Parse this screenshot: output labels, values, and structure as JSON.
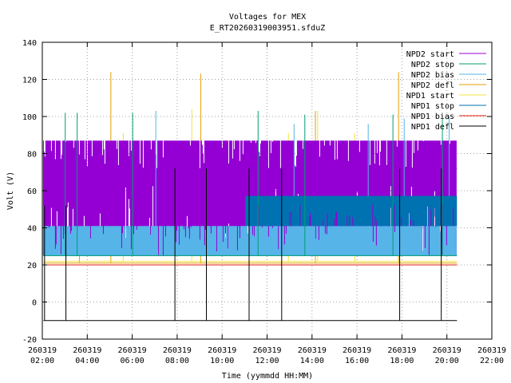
{
  "chart_data": {
    "type": "line",
    "title": "Voltages for MEX",
    "subtitle": "E_RT20260319003951.sfduZ",
    "xlabel": "Time (yymmdd HH:MM)",
    "ylabel": "Volt (V)",
    "ylim": [
      -20,
      140
    ],
    "yticks": [
      -20,
      0,
      20,
      40,
      60,
      80,
      100,
      120,
      140
    ],
    "xlim_hours": [
      2,
      22
    ],
    "xticks": [
      {
        "date": "260319",
        "time": "02:00",
        "hour": 2
      },
      {
        "date": "260319",
        "time": "04:00",
        "hour": 4
      },
      {
        "date": "260319",
        "time": "06:00",
        "hour": 6
      },
      {
        "date": "260319",
        "time": "08:00",
        "hour": 8
      },
      {
        "date": "260319",
        "time": "10:00",
        "hour": 10
      },
      {
        "date": "260319",
        "time": "12:00",
        "hour": 12
      },
      {
        "date": "260319",
        "time": "14:00",
        "hour": 14
      },
      {
        "date": "260319",
        "time": "16:00",
        "hour": 16
      },
      {
        "date": "260319",
        "time": "18:00",
        "hour": 18
      },
      {
        "date": "260319",
        "time": "20:00",
        "hour": 20
      },
      {
        "date": "260319",
        "time": "22:00",
        "hour": 22
      }
    ],
    "grid": true,
    "legend_position": "top-right",
    "series": [
      {
        "name": "NPD2 start",
        "color": "#9400d3",
        "x_range": [
          2.05,
          20.45
        ],
        "base": 72,
        "low": 25,
        "high": 87,
        "spikes": []
      },
      {
        "name": "NPD2 stop",
        "color": "#009e73",
        "x_range": [
          2.05,
          20.45
        ],
        "base": 25,
        "low": 25,
        "high": 25,
        "spikes": [
          [
            2.05,
            52
          ],
          [
            3.02,
            102
          ],
          [
            3.55,
            102
          ],
          [
            6.02,
            102
          ],
          [
            11.6,
            103
          ],
          [
            13.68,
            101
          ],
          [
            17.6,
            101
          ],
          [
            19.8,
            99
          ]
        ]
      },
      {
        "name": "NPD2 bias",
        "color": "#56b4e9",
        "x_range": [
          2.05,
          20.45
        ],
        "base": 25,
        "low": 25,
        "high": 41,
        "spikes": [
          [
            7.05,
            103
          ],
          [
            13.2,
            96
          ],
          [
            16.5,
            96
          ],
          [
            18.1,
            99
          ],
          [
            20.1,
            100
          ]
        ]
      },
      {
        "name": "NPD2 defl",
        "color": "#e69f00",
        "x_range": [
          2.05,
          20.45
        ],
        "base": 21,
        "low": 21,
        "high": 21,
        "spikes": [
          [
            3.65,
            76
          ],
          [
            5.05,
            124
          ],
          [
            9.05,
            123
          ],
          [
            14.15,
            103
          ],
          [
            17.85,
            124
          ]
        ]
      },
      {
        "name": "NPD1 start",
        "color": "#f0e442",
        "x_range": [
          2.05,
          20.45
        ],
        "base": 22,
        "low": 22,
        "high": 22,
        "spikes": [
          [
            5.6,
            91
          ],
          [
            8.65,
            104
          ],
          [
            12.95,
            91
          ],
          [
            14.25,
            103
          ],
          [
            15.9,
            91
          ]
        ]
      },
      {
        "name": "NPD1 stop",
        "color": "#0072b2",
        "x_range": [
          11.05,
          20.45
        ],
        "base": 57,
        "low": 41,
        "high": 57,
        "spikes": []
      },
      {
        "name": "NPD1 bias",
        "color": "#e51e10",
        "x_range": [
          2.05,
          20.45
        ],
        "base": 20,
        "low": 20,
        "high": 20,
        "spikes": []
      },
      {
        "name": "NPD1 defl",
        "color": "#000000",
        "x_range": [
          2.05,
          20.45
        ],
        "base": -10,
        "low": -10,
        "high": -10,
        "spikes": [
          [
            2.1,
            52
          ],
          [
            3.05,
            52
          ],
          [
            7.9,
            72
          ],
          [
            9.3,
            72
          ],
          [
            11.2,
            72
          ],
          [
            12.65,
            72
          ],
          [
            17.9,
            72
          ],
          [
            19.75,
            72
          ]
        ]
      }
    ]
  }
}
